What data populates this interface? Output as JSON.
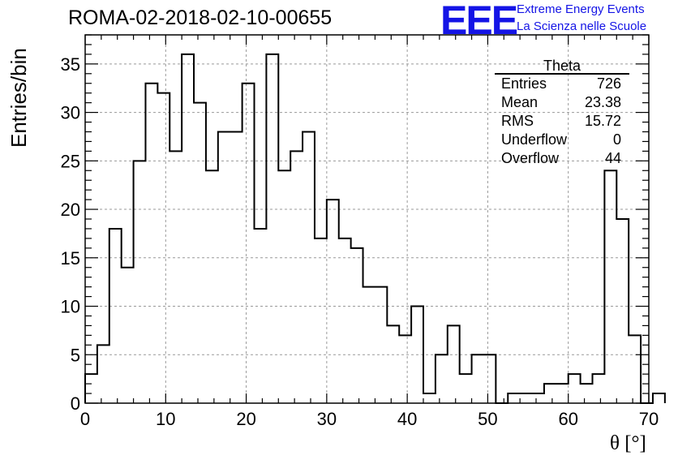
{
  "header": {
    "title": "ROMA-02-2018-02-10-00655",
    "logo_text": "EEE",
    "logo_line1": "Extreme Energy Events",
    "logo_line2": "La Scienza nelle Scuole"
  },
  "stats": {
    "title": "Theta",
    "rows": [
      {
        "label": "Entries",
        "value": "726"
      },
      {
        "label": "Mean",
        "value": "23.38"
      },
      {
        "label": "RMS",
        "value": "15.72"
      },
      {
        "label": "Underflow",
        "value": "0"
      },
      {
        "label": "Overflow",
        "value": "44"
      }
    ]
  },
  "chart_data": {
    "type": "histogram",
    "title": "ROMA-02-2018-02-10-00655",
    "xlabel": "θ [°]",
    "ylabel": "Entries/bin",
    "xlim": [
      0,
      70
    ],
    "ylim": [
      0,
      38
    ],
    "bin_width": 1.5,
    "xticks": [
      "0",
      "10",
      "20",
      "30",
      "40",
      "50",
      "60",
      "70"
    ],
    "yticks": [
      "0",
      "5",
      "10",
      "15",
      "20",
      "25",
      "30",
      "35"
    ],
    "grid": true,
    "values": [
      3,
      6,
      18,
      14,
      25,
      33,
      32,
      26,
      36,
      31,
      24,
      28,
      28,
      33,
      18,
      36,
      24,
      26,
      28,
      17,
      21,
      17,
      16,
      12,
      12,
      8,
      7,
      10,
      1,
      5,
      8,
      3,
      5,
      5,
      0,
      1,
      1,
      1,
      2,
      2,
      3,
      2,
      3,
      24,
      19,
      7,
      0,
      1
    ],
    "line_color": "#000000"
  }
}
